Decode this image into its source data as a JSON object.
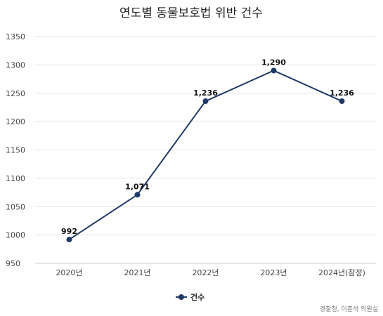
{
  "chart_data": {
    "type": "line",
    "title": "연도별 동물보호법 위반 건수",
    "categories": [
      "2020년",
      "2021년",
      "2022년",
      "2023년",
      "2024년(잠정)"
    ],
    "series": [
      {
        "name": "건수",
        "values": [
          992,
          1071,
          1236,
          1290,
          1236
        ],
        "color": "#1f3a68"
      }
    ],
    "data_labels": [
      "992",
      "1,071",
      "1,236",
      "1,290",
      "1,236"
    ],
    "ylim": [
      950,
      1350
    ],
    "yticks": [
      950,
      1000,
      1050,
      1100,
      1150,
      1200,
      1250,
      1300,
      1350
    ],
    "grid": true,
    "legend_position": "bottom-center",
    "source": "경찰청, 이춘석 의원실"
  }
}
